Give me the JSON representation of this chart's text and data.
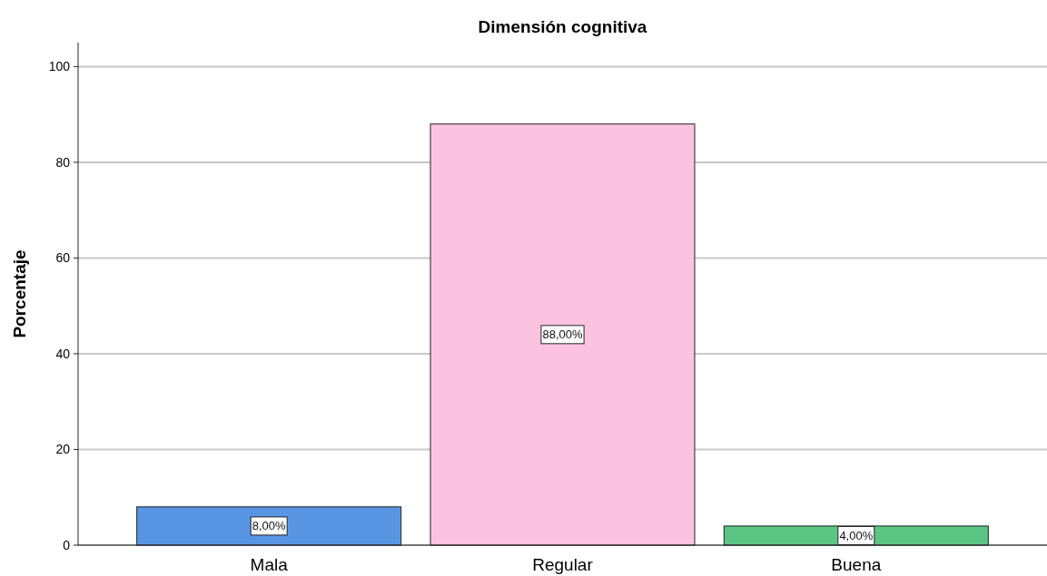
{
  "chart_data": {
    "type": "bar",
    "title": "Dimensión cognitiva",
    "ylabel": "Porcentaje",
    "categories": [
      "Mala",
      "Regular",
      "Buena"
    ],
    "values": [
      8,
      88,
      4
    ],
    "colors": [
      "#5896e4",
      "#fcc3e1",
      "#5cc583"
    ],
    "value_labels": [
      "8,00%",
      "88,00%",
      "4,00%"
    ],
    "ylim": [
      0,
      105
    ],
    "yticks": [
      0,
      20,
      40,
      60,
      80,
      100
    ],
    "grid": "y"
  }
}
